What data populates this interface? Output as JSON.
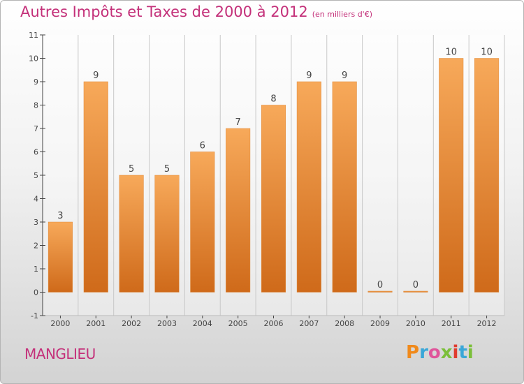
{
  "title": "Autres Impôts et Taxes de 2000 à 2012",
  "subtitle": "(en milliers d'€)",
  "place": "MANGLIEU",
  "logo": {
    "text": "Proxiti",
    "letter_colors": [
      "#f08a1c",
      "#3aa7d8",
      "#e0559b",
      "#7bbf3a",
      "#e03b2f",
      "#3aa7d8",
      "#7bbf3a"
    ]
  },
  "colors": {
    "bar_top": "#f7a95a",
    "bar_bottom": "#cf6a1a",
    "grid": "#c8c8c8",
    "axis": "#444444",
    "title": "#c4317a"
  },
  "chart_data": {
    "type": "bar",
    "categories": [
      "2000",
      "2001",
      "2002",
      "2003",
      "2004",
      "2005",
      "2006",
      "2007",
      "2008",
      "2009",
      "2010",
      "2011",
      "2012"
    ],
    "values": [
      3,
      9,
      5,
      5,
      6,
      7,
      8,
      9,
      9,
      0,
      0,
      10,
      10
    ],
    "data_labels": [
      "3",
      "9",
      "5",
      "5",
      "6",
      "7",
      "8",
      "9",
      "9",
      "0",
      "0",
      "10",
      "10"
    ],
    "y_ticks": [
      "-1",
      "0",
      "1",
      "2",
      "3",
      "4",
      "5",
      "6",
      "7",
      "8",
      "9",
      "10",
      "11"
    ],
    "ylim": [
      -1,
      11
    ],
    "grid": true,
    "grid_axis": "x"
  }
}
